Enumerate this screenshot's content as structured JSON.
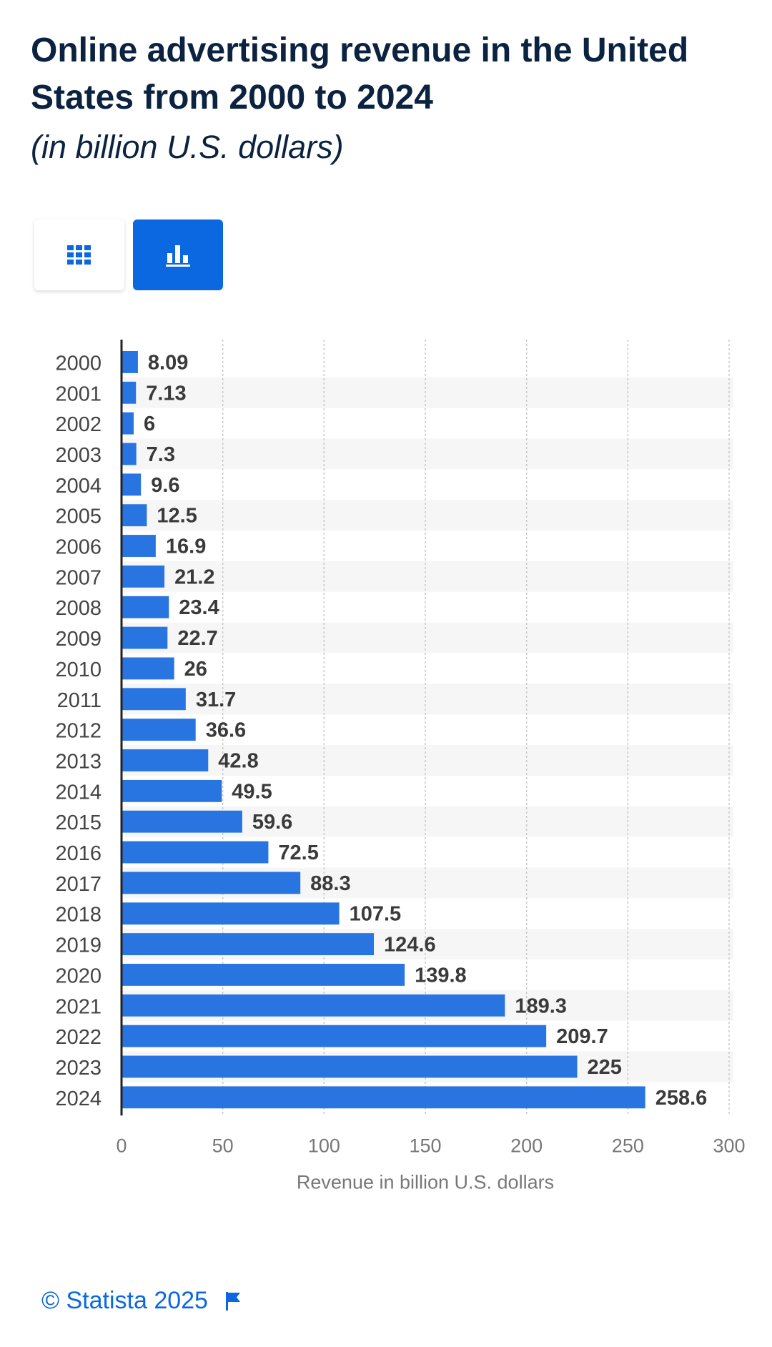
{
  "header": {
    "title": "Online advertising revenue in the United States from 2000 to 2024",
    "subtitle": "(in billion U.S. dollars)"
  },
  "view_toggle": {
    "table_icon": "grid-icon",
    "chart_icon": "bar-chart-icon",
    "active": "chart"
  },
  "colors": {
    "bar": "#2874e0",
    "accent": "#0b68e0",
    "title": "#0b2340",
    "stripe": "#f6f6f6",
    "grid": "#c8c8c8"
  },
  "chart_data": {
    "type": "bar",
    "orientation": "horizontal",
    "categories": [
      "2000",
      "2001",
      "2002",
      "2003",
      "2004",
      "2005",
      "2006",
      "2007",
      "2008",
      "2009",
      "2010",
      "2011",
      "2012",
      "2013",
      "2014",
      "2015",
      "2016",
      "2017",
      "2018",
      "2019",
      "2020",
      "2021",
      "2022",
      "2023",
      "2024"
    ],
    "values": [
      8.09,
      7.13,
      6,
      7.3,
      9.6,
      12.5,
      16.9,
      21.2,
      23.4,
      22.7,
      26,
      31.7,
      36.6,
      42.8,
      49.5,
      59.6,
      72.5,
      88.3,
      107.5,
      124.6,
      139.8,
      189.3,
      209.7,
      225,
      258.6
    ],
    "value_labels": [
      "8.09",
      "7.13",
      "6",
      "7.3",
      "9.6",
      "12.5",
      "16.9",
      "21.2",
      "23.4",
      "22.7",
      "26",
      "31.7",
      "36.6",
      "42.8",
      "49.5",
      "59.6",
      "72.5",
      "88.3",
      "107.5",
      "124.6",
      "139.8",
      "189.3",
      "209.7",
      "225",
      "258.6"
    ],
    "xlim": [
      0,
      300
    ],
    "x_ticks": [
      0,
      50,
      100,
      150,
      200,
      250,
      300
    ],
    "xlabel": "Revenue in billion U.S. dollars",
    "ylabel": "",
    "grid": "vertical dashed",
    "legend": "none"
  },
  "footer": {
    "copyright": "© Statista 2025",
    "flag_icon": "flag-icon"
  }
}
